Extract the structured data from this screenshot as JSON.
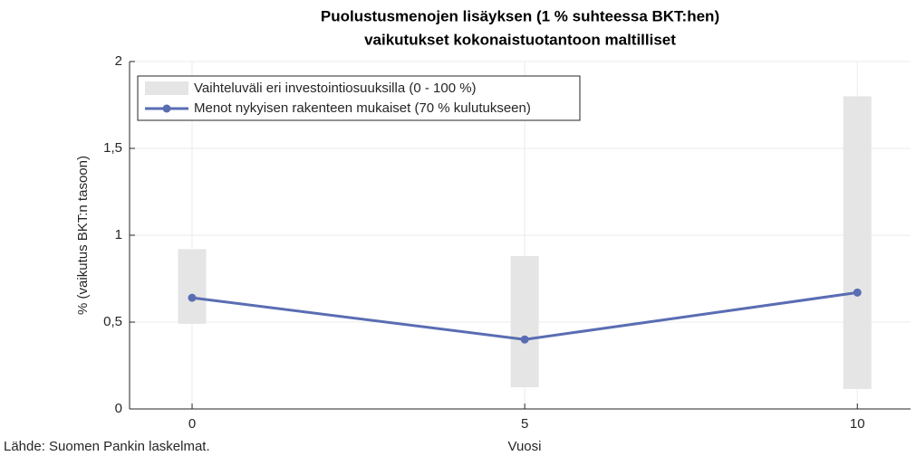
{
  "chart_data": {
    "type": "range-line",
    "title": [
      "Puolustusmenojen lisäyksen (1 % suhteessa BKT:hen)",
      "vaikutukset kokonaistuotantoon maltilliset"
    ],
    "x_label": "Vuosi",
    "y_label": "% (vaikutus BKT:n tasoon)",
    "source": "Lähde: Suomen Pankin laskelmat.",
    "x": [
      0,
      5,
      10
    ],
    "range": {
      "name": "Vaihteluväli eri investointiosuuksilla (0 - 100 %)",
      "color": "#e5e5e5",
      "low": [
        0.49,
        0.125,
        0.115
      ],
      "high": [
        0.92,
        0.88,
        1.8
      ]
    },
    "series": [
      {
        "name": "Menot nykyisen rakenteen mukaiset (70 % kulutukseen)",
        "color": "#5a6db3",
        "values": [
          0.64,
          0.4,
          0.67
        ]
      }
    ],
    "xlim": [
      -0.94,
      10.8
    ],
    "xticks": [
      0,
      5,
      10
    ],
    "ylim": [
      0,
      2
    ],
    "yticks": [
      0,
      {
        "value": 0.5,
        "label": "0,5"
      },
      1,
      {
        "value": 1.5,
        "label": "1,5"
      },
      2
    ],
    "grid": true,
    "legend": "upper left"
  }
}
